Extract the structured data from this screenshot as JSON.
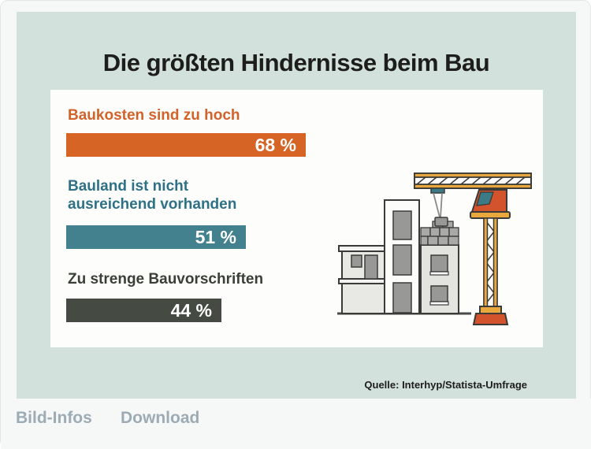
{
  "infographic": {
    "title": "Die größten Hindernisse beim Bau",
    "source": "Quelle: Interhyp/Statista-Umfrage"
  },
  "chart_data": {
    "type": "bar",
    "orientation": "horizontal",
    "title": "Die größten Hindernisse beim Bau",
    "unit": "%",
    "xlim": [
      0,
      100
    ],
    "categories": [
      "Baukosten sind zu hoch",
      "Bauland ist nicht ausreichend vorhanden",
      "Zu strenge Bauvorschriften"
    ],
    "values": [
      68,
      51,
      44
    ],
    "rows": [
      {
        "label_line1": "Baukosten sind zu hoch",
        "label_line2": "",
        "value": 68,
        "value_label": "68 %",
        "bar_color": "#d66425",
        "label_color": "#d2622a"
      },
      {
        "label_line1": "Bauland ist nicht",
        "label_line2": "ausreichend vorhanden",
        "value": 51,
        "value_label": "51 %",
        "bar_color": "#44818e",
        "label_color": "#2e7186"
      },
      {
        "label_line1": "Zu strenge Bauvorschriften",
        "label_line2": "",
        "value": 44,
        "value_label": "44 %",
        "bar_color": "#454a42",
        "label_color": "#3a3f38"
      }
    ],
    "source": "Quelle: Interhyp/Statista-Umfrage",
    "legend": [],
    "grid": false,
    "illustration": "construction-site-with-tower-crane"
  },
  "footer": {
    "links": [
      {
        "label": "Bild-Infos"
      },
      {
        "label": "Download"
      }
    ]
  },
  "colors": {
    "page_bg": "#f6f7f7",
    "canvas_bg": "#d3e1dd",
    "panel_bg": "#fdfdfb",
    "title_color": "#1d1d1b",
    "bar_value_color": "#ffffff",
    "footer_link_color": "#9dabb4",
    "crane_yellow": "#e8a83d",
    "crane_orange": "#d2532c",
    "crane_teal": "#3c7b86"
  }
}
